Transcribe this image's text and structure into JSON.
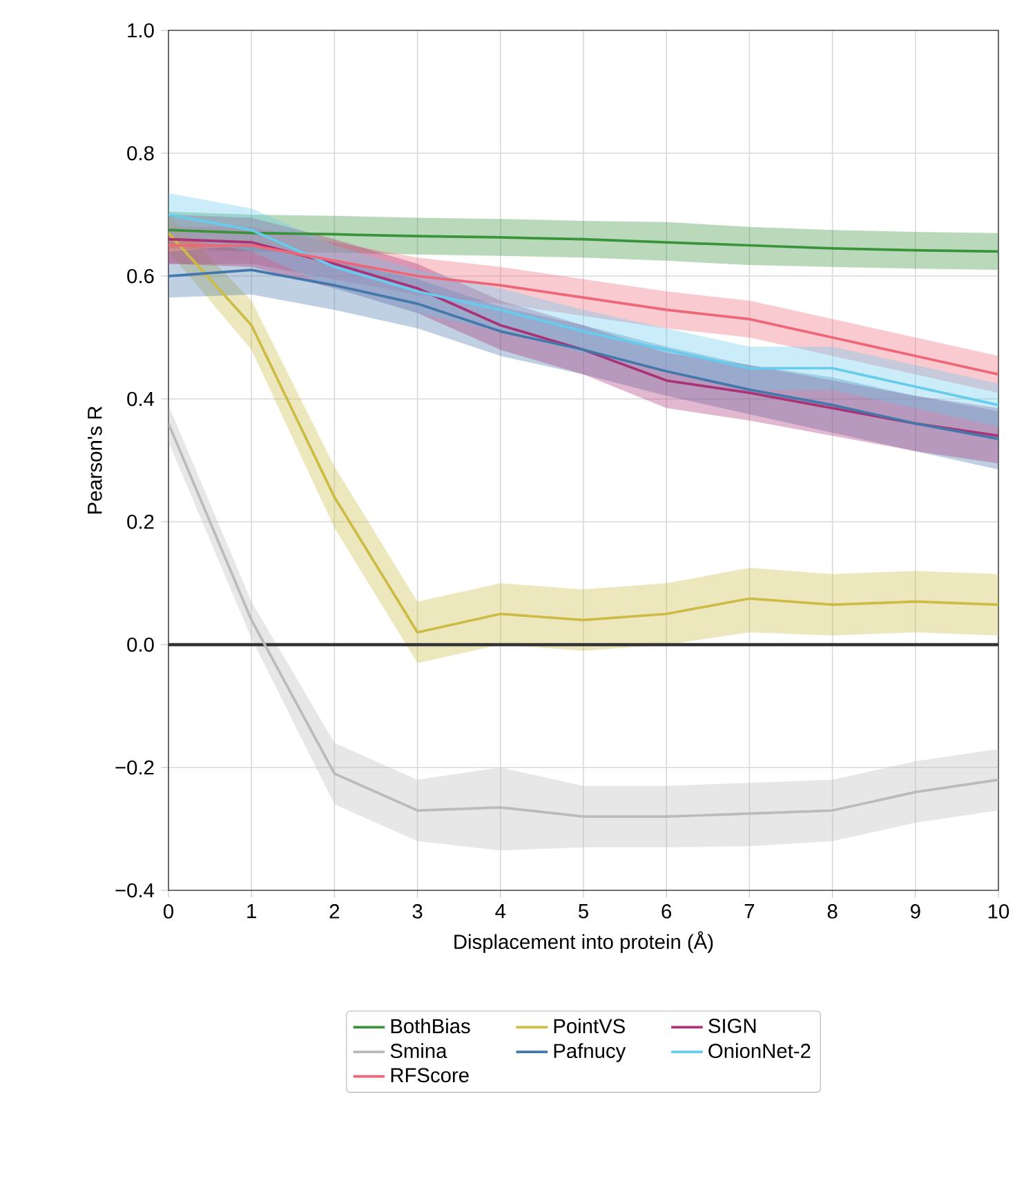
{
  "chart_data": {
    "type": "line",
    "xlabel": "Displacement into protein (Å)",
    "ylabel": "Pearson's R",
    "x": [
      0,
      1,
      2,
      3,
      4,
      5,
      6,
      7,
      8,
      9,
      10
    ],
    "xlim": [
      0,
      10
    ],
    "xticks": [
      0,
      1,
      2,
      3,
      4,
      5,
      6,
      7,
      8,
      9,
      10
    ],
    "ylim": [
      -0.4,
      1.0
    ],
    "yticks": [
      {
        "value": -0.4,
        "label": "−0.4"
      },
      {
        "value": -0.2,
        "label": "−0.2"
      },
      {
        "value": 0,
        "label": "0.0"
      },
      {
        "value": 0.2,
        "label": "0.2"
      },
      {
        "value": 0.4,
        "label": "0.4"
      },
      {
        "value": 0.6,
        "label": "0.6"
      },
      {
        "value": 0.8,
        "label": "0.8"
      },
      {
        "value": 1.0,
        "label": "1.0"
      }
    ],
    "grid": true,
    "legend": "bottom",
    "marker": "none",
    "line_style": "solid",
    "ref_lines": [
      {
        "axis": "y",
        "value": 0,
        "color": "#333333"
      }
    ],
    "series": [
      {
        "name": "BothBias",
        "color": "#3a923a",
        "values": [
          0.675,
          0.67,
          0.668,
          0.665,
          0.663,
          0.66,
          0.655,
          0.65,
          0.645,
          0.642,
          0.64
        ],
        "lower": [
          0.645,
          0.64,
          0.638,
          0.635,
          0.633,
          0.63,
          0.625,
          0.618,
          0.615,
          0.612,
          0.61
        ],
        "upper": [
          0.705,
          0.7,
          0.698,
          0.695,
          0.693,
          0.69,
          0.688,
          0.68,
          0.675,
          0.672,
          0.67
        ]
      },
      {
        "name": "Smina",
        "color": "#bbbbbb",
        "values": [
          0.36,
          0.04,
          -0.21,
          -0.27,
          -0.265,
          -0.28,
          -0.28,
          -0.275,
          -0.27,
          -0.24,
          -0.22
        ],
        "lower": [
          0.33,
          0.01,
          -0.26,
          -0.32,
          -0.335,
          -0.33,
          -0.33,
          -0.328,
          -0.32,
          -0.29,
          -0.27
        ],
        "upper": [
          0.39,
          0.07,
          -0.16,
          -0.22,
          -0.2,
          -0.23,
          -0.23,
          -0.225,
          -0.22,
          -0.19,
          -0.17
        ]
      },
      {
        "name": "RFScore",
        "color": "#ee6677",
        "values": [
          0.65,
          0.65,
          0.625,
          0.6,
          0.585,
          0.565,
          0.545,
          0.53,
          0.5,
          0.47,
          0.44
        ],
        "lower": [
          0.62,
          0.62,
          0.595,
          0.57,
          0.555,
          0.535,
          0.515,
          0.5,
          0.47,
          0.44,
          0.41
        ],
        "upper": [
          0.68,
          0.68,
          0.655,
          0.63,
          0.615,
          0.595,
          0.575,
          0.56,
          0.53,
          0.5,
          0.47
        ]
      },
      {
        "name": "PointVS",
        "color": "#ccbb44",
        "values": [
          0.67,
          0.52,
          0.24,
          0.02,
          0.05,
          0.04,
          0.05,
          0.075,
          0.065,
          0.07,
          0.065
        ],
        "lower": [
          0.64,
          0.48,
          0.19,
          -0.03,
          0.0,
          -0.01,
          0.0,
          0.02,
          0.015,
          0.02,
          0.015
        ],
        "upper": [
          0.7,
          0.56,
          0.29,
          0.07,
          0.1,
          0.09,
          0.1,
          0.125,
          0.115,
          0.12,
          0.115
        ]
      },
      {
        "name": "Pafnucy",
        "color": "#4477aa",
        "values": [
          0.6,
          0.61,
          0.585,
          0.555,
          0.51,
          0.48,
          0.445,
          0.415,
          0.39,
          0.36,
          0.335
        ],
        "lower": [
          0.565,
          0.57,
          0.545,
          0.515,
          0.47,
          0.44,
          0.405,
          0.375,
          0.345,
          0.315,
          0.285
        ],
        "upper": [
          0.64,
          0.65,
          0.625,
          0.595,
          0.55,
          0.52,
          0.485,
          0.455,
          0.435,
          0.405,
          0.38
        ]
      },
      {
        "name": "SIGN",
        "color": "#aa3377",
        "values": [
          0.66,
          0.655,
          0.62,
          0.58,
          0.52,
          0.48,
          0.43,
          0.41,
          0.385,
          0.36,
          0.34
        ],
        "lower": [
          0.62,
          0.615,
          0.58,
          0.54,
          0.48,
          0.44,
          0.385,
          0.365,
          0.34,
          0.315,
          0.295
        ],
        "upper": [
          0.7,
          0.695,
          0.66,
          0.62,
          0.56,
          0.52,
          0.475,
          0.455,
          0.43,
          0.405,
          0.385
        ]
      },
      {
        "name": "OnionNet-2",
        "color": "#66ccee",
        "values": [
          0.7,
          0.675,
          0.615,
          0.575,
          0.545,
          0.51,
          0.48,
          0.45,
          0.45,
          0.42,
          0.39
        ],
        "lower": [
          0.665,
          0.64,
          0.58,
          0.54,
          0.51,
          0.475,
          0.445,
          0.415,
          0.415,
          0.385,
          0.355
        ],
        "upper": [
          0.735,
          0.71,
          0.65,
          0.61,
          0.58,
          0.545,
          0.515,
          0.485,
          0.485,
          0.455,
          0.425
        ]
      }
    ]
  }
}
